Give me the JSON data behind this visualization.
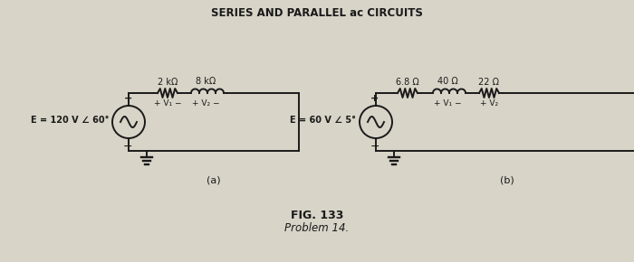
{
  "title": "SERIES AND PARALLEL ac CIRCUITS",
  "fig_label": "FIG. 133",
  "fig_sublabel": "Problem 14.",
  "bg_color": "#d8d4c8",
  "circuit_color": "#1a1a1a",
  "circuit_a": {
    "label": "(a)",
    "source_label": "E = 120 V ∠ 60°",
    "r1_label": "2 kΩ",
    "r2_label": "8 kΩ",
    "v1_label": "+ V₁ −",
    "v2_label": "+ V₂ −"
  },
  "circuit_b": {
    "label": "(b)",
    "source_label": "E = 60 V ∠ 5°",
    "r1_label": "6.8 Ω",
    "r2_label": "40 Ω",
    "r3_label": "22 Ω",
    "v1_label": "+ V₁ −",
    "v2_label": "+ V₂"
  }
}
